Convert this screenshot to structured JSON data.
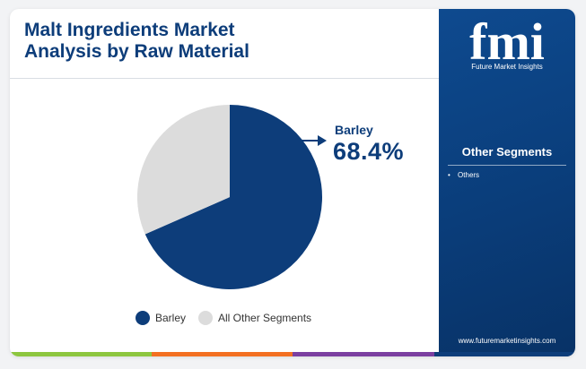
{
  "title_lines": [
    "Malt Ingredients Market",
    "Analysis by Raw Material"
  ],
  "chart_data": {
    "type": "pie",
    "slices": [
      {
        "label": "Barley",
        "value": 68.4,
        "color": "#0d3d7a"
      },
      {
        "label": "All Other Segments",
        "value": 31.6,
        "color": "#dcdcdc"
      }
    ],
    "callout": {
      "label": "Barley",
      "value_text": "68.4%"
    },
    "legend": [
      "Barley",
      "All Other Segments"
    ],
    "legend_position": "bottom"
  },
  "sidebar": {
    "logo_text": "fmi",
    "logo_caption": "Future Market Insights",
    "heading": "Other Segments",
    "items": [
      "Others"
    ],
    "bullet": "•",
    "url": "www.futuremarketinsights.com"
  },
  "colors": {
    "brand_navy": "#0d3d7a",
    "sidebar_blue": "#0a3d7a",
    "bottom_bar": [
      "#8dc63f",
      "#f36f21",
      "#7b3fa0",
      "#0d3d7a"
    ]
  }
}
